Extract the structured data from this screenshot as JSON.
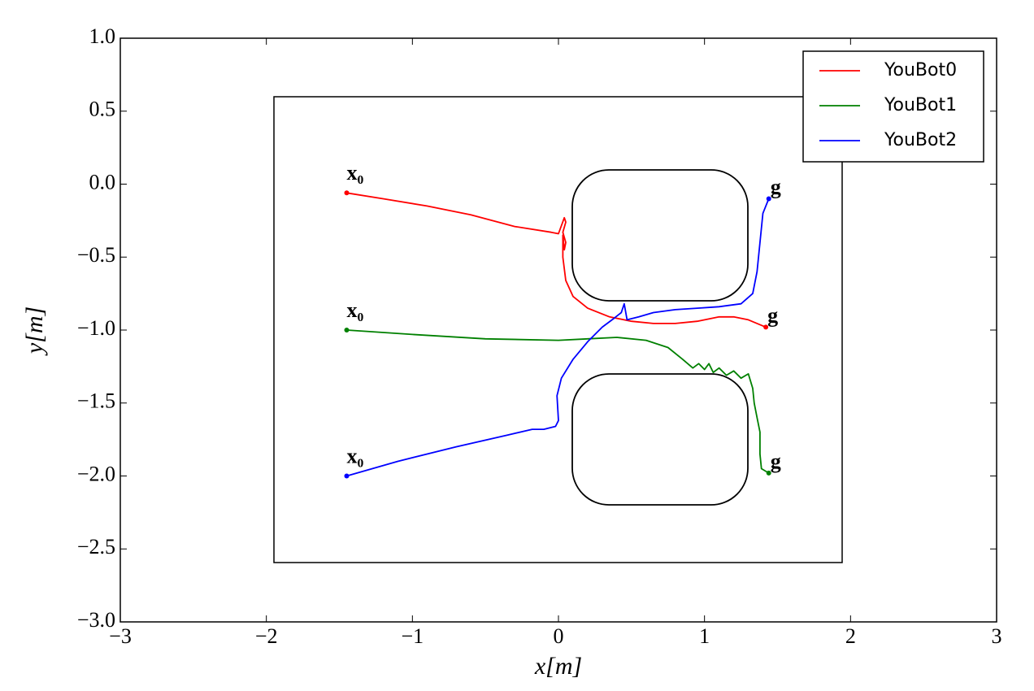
{
  "chart_data": {
    "type": "line",
    "xlabel": "x[m]",
    "ylabel": "y[m]",
    "xlim": [
      -3,
      3
    ],
    "ylim": [
      -3,
      1
    ],
    "xticks": [
      {
        "value": -3,
        "label": "−3"
      },
      {
        "value": -2,
        "label": "−2"
      },
      {
        "value": -1,
        "label": "−1"
      },
      0,
      1,
      2,
      3
    ],
    "yticks": [
      {
        "value": 1,
        "label": "1.0"
      },
      {
        "value": 0.5,
        "label": "0.5"
      },
      {
        "value": 0,
        "label": "0.0"
      },
      {
        "value": -0.5,
        "label": "−0.5"
      },
      {
        "value": -1,
        "label": "−1.0"
      },
      {
        "value": -1.5,
        "label": "−1.5"
      },
      {
        "value": -2,
        "label": "−2.0"
      },
      {
        "value": -2.5,
        "label": "−2.5"
      },
      {
        "value": -3,
        "label": "−3.0"
      }
    ],
    "legend": "upper right",
    "series": [
      {
        "name": "YouBot0",
        "color": "#ff0000",
        "start_label": "x₀",
        "end_label": "g",
        "x": [
          -1.45,
          -1.2,
          -0.9,
          -0.6,
          -0.3,
          -0.05,
          0.0,
          0.04,
          0.05,
          0.03,
          0.05,
          0.04,
          0.03,
          0.03,
          0.05,
          0.1,
          0.2,
          0.35,
          0.5,
          0.65,
          0.8,
          0.95,
          1.1,
          1.2,
          1.3,
          1.42
        ],
        "values": [
          -0.06,
          -0.1,
          -0.15,
          -0.21,
          -0.29,
          -0.33,
          -0.34,
          -0.23,
          -0.26,
          -0.33,
          -0.4,
          -0.45,
          -0.35,
          -0.5,
          -0.66,
          -0.77,
          -0.85,
          -0.91,
          -0.94,
          -0.955,
          -0.955,
          -0.94,
          -0.91,
          -0.91,
          -0.93,
          -0.98
        ]
      },
      {
        "name": "YouBot1",
        "color": "#008000",
        "start_label": "x₀",
        "end_label": "g",
        "x": [
          -1.45,
          -1.0,
          -0.5,
          0.0,
          0.2,
          0.4,
          0.6,
          0.75,
          0.85,
          0.92,
          0.96,
          1.0,
          1.03,
          1.06,
          1.1,
          1.15,
          1.2,
          1.25,
          1.3,
          1.33,
          1.34,
          1.36,
          1.38,
          1.38,
          1.39,
          1.44
        ],
        "values": [
          -1.0,
          -1.03,
          -1.06,
          -1.07,
          -1.06,
          -1.05,
          -1.07,
          -1.12,
          -1.2,
          -1.26,
          -1.23,
          -1.27,
          -1.23,
          -1.29,
          -1.26,
          -1.31,
          -1.28,
          -1.33,
          -1.3,
          -1.4,
          -1.5,
          -1.6,
          -1.7,
          -1.85,
          -1.95,
          -1.98
        ]
      },
      {
        "name": "YouBot2",
        "color": "#0000ff",
        "start_label": "x₀",
        "end_label": "g",
        "x": [
          -1.45,
          -1.1,
          -0.7,
          -0.35,
          -0.18,
          -0.1,
          -0.02,
          0.0,
          -0.01,
          0.02,
          0.1,
          0.2,
          0.3,
          0.38,
          0.43,
          0.45,
          0.47,
          0.55,
          0.65,
          0.8,
          0.95,
          1.1,
          1.25,
          1.33,
          1.36,
          1.38,
          1.4,
          1.44
        ],
        "values": [
          -2.0,
          -1.9,
          -1.8,
          -1.72,
          -1.68,
          -1.68,
          -1.66,
          -1.62,
          -1.45,
          -1.33,
          -1.2,
          -1.08,
          -0.98,
          -0.92,
          -0.88,
          -0.82,
          -0.93,
          -0.91,
          -0.88,
          -0.86,
          -0.85,
          -0.84,
          -0.82,
          -0.75,
          -0.6,
          -0.4,
          -0.2,
          -0.1
        ]
      }
    ]
  }
}
